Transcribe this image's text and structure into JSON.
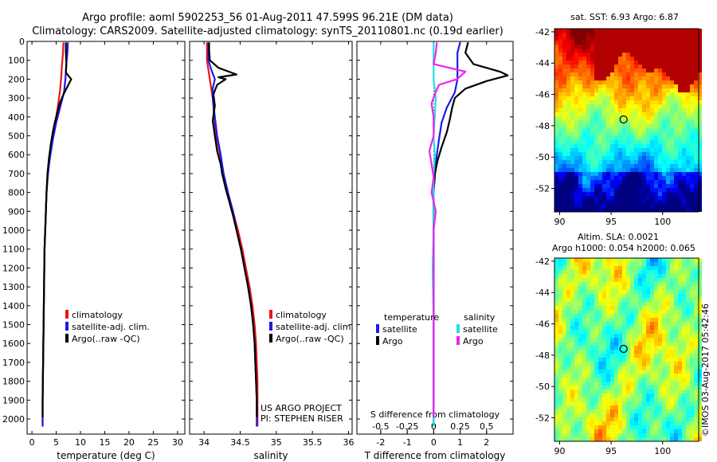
{
  "header": {
    "line1": "Argo profile: aoml 5902253_56 01-Aug-2011 47.599S 96.21E (DM data)",
    "line2": "Climatology: CARS2009. Satellite-adjusted climatology: synTS_20110801.nc (0.19d earlier)"
  },
  "colors": {
    "climatology": "#e8141b",
    "satellite": "#1b1be6",
    "argo": "#000000",
    "sal_satellite": "#22e0e0",
    "sal_argo": "#ee22ee"
  },
  "chart_data": [
    {
      "type": "line",
      "panel": "temperature",
      "xlabel": "temperature (deg C)",
      "xlim": [
        -1,
        31.5
      ],
      "xticks": [
        0,
        5,
        10,
        15,
        20,
        25,
        30
      ],
      "ylim": [
        2080,
        0
      ],
      "yticks": [
        0,
        100,
        200,
        300,
        400,
        500,
        600,
        700,
        800,
        900,
        1000,
        1100,
        1200,
        1300,
        1400,
        1500,
        1600,
        1700,
        1800,
        1900,
        2000
      ],
      "legend": [
        "climatology",
        "satellite-adj. clim.",
        "Argo(..raw -QC)"
      ],
      "series": [
        {
          "name": "climatology",
          "color": "#e8141b",
          "points": [
            [
              6.5,
              5
            ],
            [
              6.4,
              60
            ],
            [
              6.2,
              120
            ],
            [
              6.0,
              200
            ],
            [
              5.8,
              260
            ],
            [
              5.3,
              350
            ],
            [
              4.8,
              430
            ],
            [
              4.2,
              520
            ],
            [
              3.6,
              620
            ],
            [
              3.3,
              700
            ],
            [
              3.0,
              800
            ],
            [
              2.8,
              950
            ],
            [
              2.6,
              1100
            ],
            [
              2.5,
              1300
            ],
            [
              2.4,
              1500
            ],
            [
              2.3,
              1700
            ],
            [
              2.2,
              1900
            ],
            [
              2.2,
              2040
            ]
          ]
        },
        {
          "name": "satellite-adj. clim.",
          "color": "#1b1be6",
          "points": [
            [
              7.4,
              5
            ],
            [
              7.3,
              60
            ],
            [
              7.1,
              120
            ],
            [
              6.9,
              200
            ],
            [
              6.6,
              270
            ],
            [
              5.8,
              350
            ],
            [
              5.0,
              430
            ],
            [
              4.3,
              520
            ],
            [
              3.7,
              620
            ],
            [
              3.3,
              700
            ],
            [
              3.0,
              800
            ],
            [
              2.8,
              950
            ],
            [
              2.6,
              1100
            ],
            [
              2.5,
              1300
            ],
            [
              2.4,
              1500
            ],
            [
              2.3,
              1700
            ],
            [
              2.2,
              1900
            ],
            [
              2.2,
              2040
            ]
          ]
        },
        {
          "name": "Argo(..raw -QC)",
          "color": "#000000",
          "points": [
            [
              7.0,
              5
            ],
            [
              7.0,
              60
            ],
            [
              7.1,
              120
            ],
            [
              7.0,
              165
            ],
            [
              8.1,
              200
            ],
            [
              7.5,
              230
            ],
            [
              6.5,
              280
            ],
            [
              5.7,
              330
            ],
            [
              5.2,
              380
            ],
            [
              4.7,
              430
            ],
            [
              4.3,
              480
            ],
            [
              3.9,
              540
            ],
            [
              3.5,
              620
            ],
            [
              3.2,
              700
            ],
            [
              3.0,
              800
            ],
            [
              2.8,
              950
            ],
            [
              2.6,
              1100
            ],
            [
              2.5,
              1300
            ],
            [
              2.4,
              1500
            ],
            [
              2.3,
              1700
            ],
            [
              2.2,
              1900
            ],
            [
              2.2,
              1990
            ]
          ]
        }
      ]
    },
    {
      "type": "line",
      "panel": "salinity",
      "xlabel": "salinity",
      "xlim": [
        33.8,
        36.05
      ],
      "xticks": [
        34,
        34.5,
        35,
        35.5,
        36
      ],
      "ylim": [
        2080,
        0
      ],
      "legend": [
        "climatology",
        "satellite-adj. clim.",
        "Argo(..raw -QC)"
      ],
      "series": [
        {
          "name": "climatology",
          "color": "#e8141b",
          "points": [
            [
              34.04,
              5
            ],
            [
              34.04,
              100
            ],
            [
              34.08,
              200
            ],
            [
              34.12,
              300
            ],
            [
              34.14,
              400
            ],
            [
              34.17,
              500
            ],
            [
              34.22,
              600
            ],
            [
              34.27,
              700
            ],
            [
              34.33,
              800
            ],
            [
              34.4,
              900
            ],
            [
              34.47,
              1000
            ],
            [
              34.53,
              1100
            ],
            [
              34.58,
              1200
            ],
            [
              34.63,
              1300
            ],
            [
              34.67,
              1400
            ],
            [
              34.7,
              1500
            ],
            [
              34.72,
              1600
            ],
            [
              34.73,
              1700
            ],
            [
              34.74,
              1800
            ],
            [
              34.74,
              1900
            ],
            [
              34.74,
              2040
            ]
          ]
        },
        {
          "name": "satellite-adj. clim.",
          "color": "#1b1be6",
          "points": [
            [
              34.06,
              5
            ],
            [
              34.06,
              100
            ],
            [
              34.1,
              150
            ],
            [
              34.15,
              200
            ],
            [
              34.12,
              250
            ],
            [
              34.12,
              300
            ],
            [
              34.15,
              400
            ],
            [
              34.18,
              500
            ],
            [
              34.23,
              600
            ],
            [
              34.27,
              700
            ],
            [
              34.33,
              800
            ],
            [
              34.4,
              900
            ],
            [
              34.45,
              1000
            ],
            [
              34.51,
              1100
            ],
            [
              34.56,
              1200
            ],
            [
              34.61,
              1300
            ],
            [
              34.65,
              1400
            ],
            [
              34.68,
              1500
            ],
            [
              34.7,
              1600
            ],
            [
              34.71,
              1700
            ],
            [
              34.72,
              1800
            ],
            [
              34.73,
              1900
            ],
            [
              34.73,
              2040
            ]
          ]
        },
        {
          "name": "Argo(..raw -QC)",
          "color": "#000000",
          "points": [
            [
              34.07,
              5
            ],
            [
              34.07,
              50
            ],
            [
              34.08,
              100
            ],
            [
              34.2,
              140
            ],
            [
              34.45,
              175
            ],
            [
              34.2,
              190
            ],
            [
              34.3,
              200
            ],
            [
              34.18,
              230
            ],
            [
              34.13,
              280
            ],
            [
              34.15,
              340
            ],
            [
              34.12,
              420
            ],
            [
              34.15,
              500
            ],
            [
              34.18,
              580
            ],
            [
              34.23,
              650
            ],
            [
              34.25,
              700
            ],
            [
              34.3,
              780
            ],
            [
              34.35,
              850
            ],
            [
              34.4,
              920
            ],
            [
              34.45,
              1000
            ],
            [
              34.51,
              1100
            ],
            [
              34.56,
              1200
            ],
            [
              34.61,
              1300
            ],
            [
              34.65,
              1400
            ],
            [
              34.68,
              1500
            ],
            [
              34.7,
              1600
            ],
            [
              34.71,
              1700
            ],
            [
              34.72,
              1800
            ],
            [
              34.73,
              1900
            ],
            [
              34.73,
              1990
            ]
          ]
        }
      ],
      "annotations": [
        "US ARGO PROJECT",
        "PI: STEPHEN RISER"
      ]
    },
    {
      "type": "line",
      "panel": "difference",
      "xlabel": "T difference from climatology",
      "x2label": "S difference from climatology",
      "xlim": [
        -2.9,
        3.0
      ],
      "xticks": [
        -2,
        -1,
        0,
        1,
        2
      ],
      "x2lim": [
        -0.725,
        0.75
      ],
      "x2ticks": [
        -0.5,
        -0.25,
        0,
        0.25,
        0.5
      ],
      "x2ticklabels": [
        "-0.5",
        "-0.25",
        "0",
        "0.25",
        "0.5"
      ],
      "ylim": [
        2080,
        0
      ],
      "legend": {
        "left_title": "temperature",
        "right_title": "salinity",
        "left": [
          "satellite",
          "Argo"
        ],
        "right": [
          "satellite",
          "Argo"
        ]
      },
      "series": [
        {
          "name": "satellite",
          "group": "temperature",
          "color": "#1b1be6",
          "points": [
            [
              1.0,
              5
            ],
            [
              0.9,
              60
            ],
            [
              0.9,
              120
            ],
            [
              0.9,
              200
            ],
            [
              0.8,
              270
            ],
            [
              0.5,
              350
            ],
            [
              0.3,
              430
            ],
            [
              0.2,
              520
            ],
            [
              0.1,
              620
            ],
            [
              0.05,
              700
            ],
            [
              0.0,
              800
            ],
            [
              0.0,
              1000
            ],
            [
              0.0,
              1200
            ],
            [
              0.0,
              1500
            ],
            [
              0.0,
              1800
            ],
            [
              0.0,
              2040
            ]
          ]
        },
        {
          "name": "Argo",
          "group": "temperature",
          "color": "#000000",
          "points": [
            [
              1.3,
              5
            ],
            [
              1.2,
              60
            ],
            [
              1.5,
              120
            ],
            [
              2.5,
              160
            ],
            [
              2.8,
              180
            ],
            [
              2.0,
              210
            ],
            [
              1.2,
              250
            ],
            [
              0.8,
              300
            ],
            [
              0.7,
              350
            ],
            [
              0.6,
              420
            ],
            [
              0.5,
              480
            ],
            [
              0.3,
              560
            ],
            [
              0.15,
              630
            ],
            [
              0.05,
              700
            ],
            [
              0.0,
              800
            ],
            [
              0.0,
              1000
            ],
            [
              0.0,
              1200
            ],
            [
              0.0,
              1500
            ],
            [
              0.0,
              1800
            ],
            [
              0.0,
              1990
            ]
          ]
        },
        {
          "name": "satellite",
          "group": "salinity",
          "color": "#22e0e0",
          "points": [
            [
              0.0,
              5
            ],
            [
              0.0,
              100
            ],
            [
              0.0,
              200
            ],
            [
              0.02,
              300
            ],
            [
              0.01,
              400
            ],
            [
              0.0,
              500
            ],
            [
              0.01,
              600
            ],
            [
              0.0,
              700
            ],
            [
              0.0,
              800
            ],
            [
              0.0,
              1000
            ],
            [
              -0.01,
              1200
            ],
            [
              0.0,
              1500
            ],
            [
              0.0,
              1800
            ],
            [
              0.0,
              2040
            ]
          ]
        },
        {
          "name": "Argo",
          "group": "salinity",
          "color": "#ee22ee",
          "points": [
            [
              0.03,
              5
            ],
            [
              0.02,
              60
            ],
            [
              0.0,
              120
            ],
            [
              0.3,
              160
            ],
            [
              0.22,
              200
            ],
            [
              0.05,
              230
            ],
            [
              0.01,
              280
            ],
            [
              -0.02,
              330
            ],
            [
              0.0,
              400
            ],
            [
              0.0,
              500
            ],
            [
              -0.04,
              580
            ],
            [
              -0.02,
              650
            ],
            [
              0.0,
              720
            ],
            [
              -0.02,
              800
            ],
            [
              0.02,
              900
            ],
            [
              0.0,
              1000
            ],
            [
              0.0,
              1100
            ],
            [
              0.0,
              1200
            ],
            [
              0.0,
              1500
            ],
            [
              0.0,
              1800
            ],
            [
              0.0,
              1990
            ]
          ]
        }
      ]
    },
    {
      "type": "heatmap",
      "panel": "map_sst",
      "title": "sat. SST: 6.93 Argo: 6.87",
      "xlim": [
        89.5,
        103.5
      ],
      "xticks": [
        90,
        95,
        100
      ],
      "ylim": [
        -53.5,
        -41.8
      ],
      "yticks": [
        -42,
        -44,
        -46,
        -48,
        -50,
        -52
      ],
      "marker": [
        96.21,
        -47.599
      ]
    },
    {
      "type": "heatmap",
      "panel": "map_sla",
      "title": "Altim. SLA: 0.0021",
      "subtitle": "Argo h1000: 0.054 h2000: 0.065",
      "xlim": [
        89.5,
        103.5
      ],
      "xticks": [
        90,
        95,
        100
      ],
      "ylim": [
        -53.5,
        -41.8
      ],
      "yticks": [
        -42,
        -44,
        -46,
        -48,
        -50,
        -52
      ],
      "marker": [
        96.21,
        -47.599
      ]
    }
  ],
  "footer": {
    "stamp": "©IMOS 03-Aug-2017 05:42:46"
  }
}
